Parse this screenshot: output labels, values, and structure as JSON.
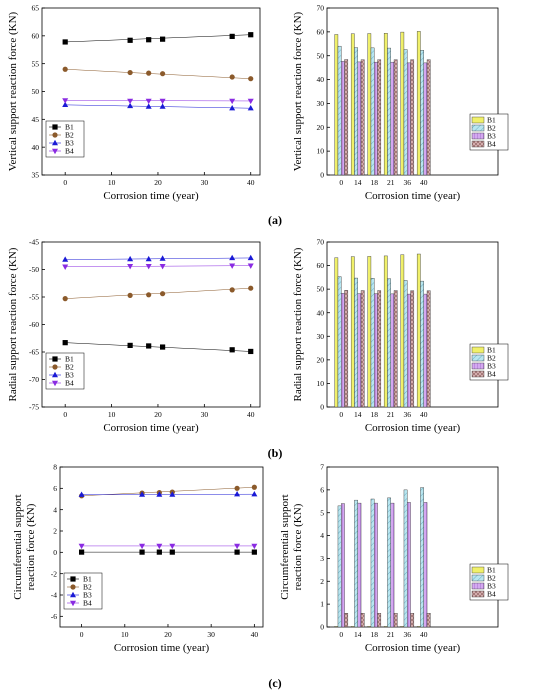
{
  "panel_labels": [
    "(a)",
    "(b)",
    "(c)"
  ],
  "colors": {
    "B1": "#f0f06a",
    "B2": "#b8e6f0",
    "B3": "#d4a8f0",
    "B4": "#d9b3b3",
    "bar_edge": "#333333",
    "line_B1": "#000000",
    "line_B2": "#8b5a2b",
    "line_B3": "#1a1ad6",
    "line_B4": "#8a2be2"
  },
  "chart_data": [
    {
      "type": "scatter",
      "panel": "a-left",
      "xlabel": "Corrosion time (year)",
      "ylabel": "Vertical support reaction force (KN)",
      "xlim": [
        -5,
        42
      ],
      "ylim": [
        35,
        65
      ],
      "xticks": [
        0,
        10,
        20,
        30,
        40
      ],
      "yticks": [
        35,
        40,
        45,
        50,
        55,
        60,
        65
      ],
      "x": [
        0,
        14,
        18,
        21,
        36,
        40
      ],
      "series": [
        {
          "name": "B1",
          "values": [
            58.9,
            59.2,
            59.3,
            59.4,
            59.9,
            60.2
          ],
          "marker": "square"
        },
        {
          "name": "B2",
          "values": [
            54.0,
            53.4,
            53.3,
            53.2,
            52.6,
            52.3
          ],
          "marker": "circle"
        },
        {
          "name": "B3",
          "values": [
            47.6,
            47.4,
            47.3,
            47.3,
            47.0,
            47.0
          ],
          "marker": "triangle-up"
        },
        {
          "name": "B4",
          "values": [
            48.4,
            48.3,
            48.3,
            48.3,
            48.3,
            48.3
          ],
          "marker": "triangle-down"
        }
      ],
      "legend": "bottom-left",
      "grid": false
    },
    {
      "type": "bar",
      "panel": "a-right",
      "xlabel": "Corrosion time (year)",
      "ylabel": "Vertical support reaction force (KN)",
      "categories": [
        "0",
        "14",
        "18",
        "21",
        "36",
        "40"
      ],
      "ylim": [
        0,
        70
      ],
      "yticks": [
        0,
        10,
        20,
        30,
        40,
        50,
        60,
        70
      ],
      "series": [
        {
          "name": "B1",
          "values": [
            58.9,
            59.2,
            59.3,
            59.4,
            59.9,
            60.2
          ]
        },
        {
          "name": "B2",
          "values": [
            54.0,
            53.4,
            53.3,
            53.2,
            52.6,
            52.3
          ]
        },
        {
          "name": "B3",
          "values": [
            47.6,
            47.4,
            47.3,
            47.3,
            47.0,
            47.0
          ]
        },
        {
          "name": "B4",
          "values": [
            48.4,
            48.3,
            48.3,
            48.3,
            48.3,
            48.3
          ]
        }
      ],
      "legend": "right",
      "grid": false
    },
    {
      "type": "scatter",
      "panel": "b-left",
      "xlabel": "Corrosion time (year)",
      "ylabel": "Radial support reaction force (KN)",
      "xlim": [
        -5,
        42
      ],
      "ylim": [
        -75,
        -45
      ],
      "xticks": [
        0,
        10,
        20,
        30,
        40
      ],
      "yticks": [
        -45,
        -50,
        -55,
        -60,
        -65,
        -70,
        -75
      ],
      "x": [
        0,
        14,
        18,
        21,
        36,
        40
      ],
      "series": [
        {
          "name": "B1",
          "values": [
            -63.3,
            -63.8,
            -63.9,
            -64.1,
            -64.6,
            -64.9
          ],
          "marker": "square"
        },
        {
          "name": "B2",
          "values": [
            -55.3,
            -54.7,
            -54.6,
            -54.4,
            -53.7,
            -53.4
          ],
          "marker": "circle"
        },
        {
          "name": "B3",
          "values": [
            -48.2,
            -48.1,
            -48.1,
            -48.0,
            -47.9,
            -47.9
          ],
          "marker": "triangle-up"
        },
        {
          "name": "B4",
          "values": [
            -49.5,
            -49.4,
            -49.4,
            -49.4,
            -49.3,
            -49.3
          ],
          "marker": "triangle-down"
        }
      ],
      "legend": "bottom-left",
      "grid": false
    },
    {
      "type": "bar",
      "panel": "b-right",
      "xlabel": "Corrosion time (year)",
      "ylabel": "Radial support reaction force (KN)",
      "categories": [
        "0",
        "14",
        "18",
        "21",
        "36",
        "40"
      ],
      "ylim": [
        0,
        70
      ],
      "yticks": [
        0,
        10,
        20,
        30,
        40,
        50,
        60,
        70
      ],
      "series": [
        {
          "name": "B1",
          "values": [
            63.3,
            63.8,
            63.9,
            64.1,
            64.6,
            64.9
          ]
        },
        {
          "name": "B2",
          "values": [
            55.3,
            54.7,
            54.6,
            54.4,
            53.7,
            53.4
          ]
        },
        {
          "name": "B3",
          "values": [
            48.2,
            48.1,
            48.1,
            48.0,
            47.9,
            47.9
          ]
        },
        {
          "name": "B4",
          "values": [
            49.5,
            49.4,
            49.4,
            49.4,
            49.3,
            49.3
          ]
        }
      ],
      "legend": "right",
      "grid": false
    },
    {
      "type": "scatter",
      "panel": "c-left",
      "xlabel": "Corrosion time (year)",
      "ylabel": "Circumferential support reaction force (KN)",
      "xlim": [
        -5,
        42
      ],
      "ylim": [
        -7,
        8
      ],
      "xticks": [
        0,
        10,
        20,
        30,
        40
      ],
      "yticks": [
        8,
        6,
        4,
        2,
        0,
        -2,
        -4,
        -6
      ],
      "x": [
        0,
        14,
        18,
        21,
        36,
        40
      ],
      "series": [
        {
          "name": "B1",
          "values": [
            0.02,
            0.02,
            0.02,
            0.02,
            0.02,
            0.02
          ],
          "marker": "square"
        },
        {
          "name": "B2",
          "values": [
            5.3,
            5.55,
            5.6,
            5.65,
            6.0,
            6.1
          ],
          "marker": "circle"
        },
        {
          "name": "B3",
          "values": [
            5.4,
            5.42,
            5.42,
            5.42,
            5.45,
            5.45
          ],
          "marker": "triangle-up"
        },
        {
          "name": "B4",
          "values": [
            0.6,
            0.6,
            0.6,
            0.6,
            0.6,
            0.6
          ],
          "marker": "triangle-down"
        }
      ],
      "legend": "bottom-left",
      "grid": false
    },
    {
      "type": "bar",
      "panel": "c-right",
      "xlabel": "Corrosion time (year)",
      "ylabel": "Circumferential support reaction force (KN)",
      "categories": [
        "0",
        "14",
        "18",
        "21",
        "36",
        "40"
      ],
      "ylim": [
        0,
        7
      ],
      "yticks": [
        0,
        1,
        2,
        3,
        4,
        5,
        6,
        7
      ],
      "series": [
        {
          "name": "B1",
          "values": [
            0.02,
            0.02,
            0.02,
            0.02,
            0.02,
            0.02
          ]
        },
        {
          "name": "B2",
          "values": [
            5.3,
            5.55,
            5.6,
            5.65,
            6.0,
            6.1
          ]
        },
        {
          "name": "B3",
          "values": [
            5.4,
            5.42,
            5.42,
            5.42,
            5.45,
            5.45
          ]
        },
        {
          "name": "B4",
          "values": [
            0.6,
            0.6,
            0.6,
            0.6,
            0.6,
            0.6
          ]
        }
      ],
      "legend": "right",
      "grid": false
    }
  ]
}
